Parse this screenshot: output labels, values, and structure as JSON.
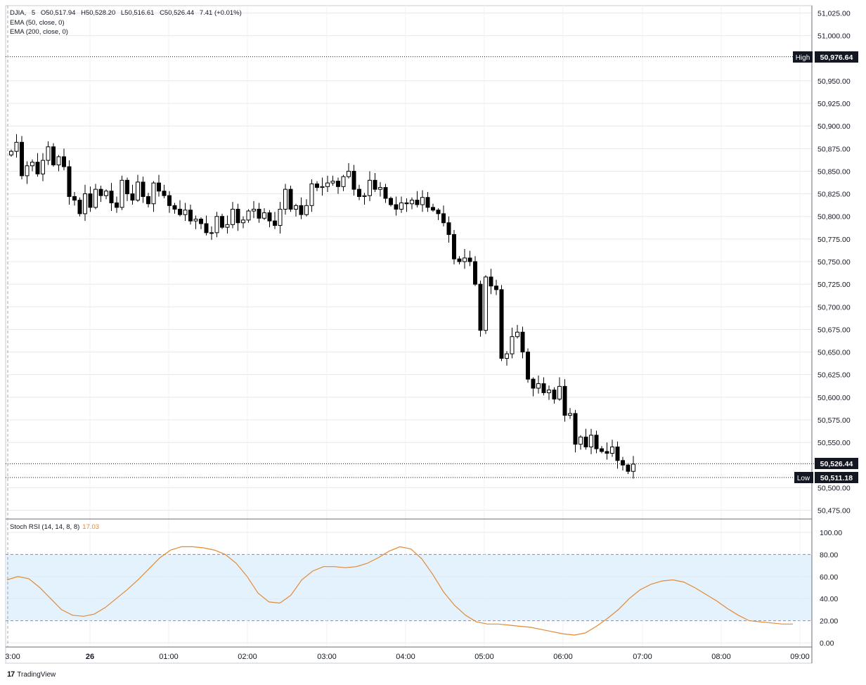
{
  "header": {
    "symbol": "DJIA",
    "interval": "5",
    "ohlc": [
      "O50,517.94",
      "H50,528.20",
      "L50,516.61",
      "C50,526.44",
      "7.41 (+0.01%)"
    ],
    "indicators": [
      "EMA (50, close, 0)",
      "EMA (200, close, 0)"
    ]
  },
  "labels": {
    "high_tag": "High",
    "high_value": "50,976.64",
    "last_value": "50,526.44",
    "low_tag": "Low",
    "low_value": "50,511.18",
    "watermark": "TradingView",
    "logo": "17"
  },
  "stoch": {
    "label": "Stoch RSI (14, 14, 8, 8)",
    "value": "17.03"
  },
  "colors": {
    "up": "#ffffff",
    "down": "#000000",
    "stoch_line": "#e38a34",
    "stoch_band": "#e3f2fd"
  },
  "chart_data": [
    {
      "type": "candlestick",
      "y_axis_ticks": [
        "51,025.00",
        "51,000.00",
        "50,950.00",
        "50,925.00",
        "50,900.00",
        "50,875.00",
        "50,850.00",
        "50,825.00",
        "50,800.00",
        "50,775.00",
        "50,750.00",
        "50,725.00",
        "50,700.00",
        "50,675.00",
        "50,650.00",
        "50,625.00",
        "50,600.00",
        "50,575.00",
        "50,550.00",
        "50,500.00",
        "50,475.00"
      ],
      "x_axis_ticks": [
        "3:00",
        "26",
        "01:00",
        "02:00",
        "03:00",
        "04:00",
        "05:00",
        "06:00",
        "07:00",
        "08:00",
        "09:00"
      ],
      "ylim": [
        50460,
        51035
      ],
      "high_line": 50976.64,
      "low_line": 50511.18,
      "last_close": 50526.44,
      "closes": [
        50872,
        50882,
        50845,
        50856,
        50860,
        50847,
        50862,
        50877,
        50857,
        50866,
        50855,
        50822,
        50818,
        50803,
        50825,
        50810,
        50830,
        50823,
        50828,
        50815,
        50810,
        50840,
        50825,
        50818,
        50838,
        50822,
        50814,
        50837,
        50828,
        50823,
        50812,
        50808,
        50802,
        50807,
        50795,
        50797,
        50792,
        50782,
        50782,
        50800,
        50788,
        50791,
        50808,
        50793,
        50796,
        50806,
        50808,
        50798,
        50804,
        50795,
        50790,
        50808,
        50830,
        50808,
        50812,
        50802,
        50812,
        50836,
        50832,
        50833,
        50837,
        50839,
        50833,
        50844,
        50850,
        50830,
        50822,
        50823,
        50840,
        50830,
        50832,
        50820,
        50813,
        50808,
        50815,
        50814,
        50818,
        50813,
        50821,
        50810,
        50807,
        50803,
        50793,
        50780,
        50753,
        50750,
        50754,
        50750,
        50725,
        50674,
        50733,
        50723,
        50719,
        50643,
        50648,
        50667,
        50672,
        50650,
        50620,
        50610,
        50615,
        50605,
        50608,
        50598,
        50612,
        50580,
        50582,
        50548,
        50556,
        50545,
        50558,
        50543,
        50540,
        50538,
        50545,
        50530,
        50525,
        50518,
        50526
      ]
    },
    {
      "type": "line",
      "name": "Stoch RSI (14, 14, 8, 8)",
      "y_axis_ticks": [
        "100.00",
        "80.00",
        "60.00",
        "40.00",
        "20.00",
        "0.00"
      ],
      "ylim": [
        -5,
        105
      ],
      "bands": [
        20,
        80
      ],
      "values": [
        57,
        60,
        58,
        50,
        40,
        30,
        25,
        24,
        26,
        32,
        40,
        48,
        57,
        67,
        77,
        84,
        87,
        87,
        86,
        84,
        80,
        72,
        60,
        45,
        37,
        36,
        43,
        57,
        65,
        69,
        69,
        68,
        69,
        72,
        77,
        83,
        87,
        85,
        76,
        62,
        46,
        34,
        25,
        19,
        17,
        17,
        16,
        15,
        14,
        12,
        10,
        8,
        7,
        9,
        15,
        22,
        30,
        40,
        48,
        53,
        56,
        57,
        55,
        50,
        44,
        38,
        31,
        25,
        20,
        19,
        18,
        17,
        17.03
      ]
    }
  ]
}
